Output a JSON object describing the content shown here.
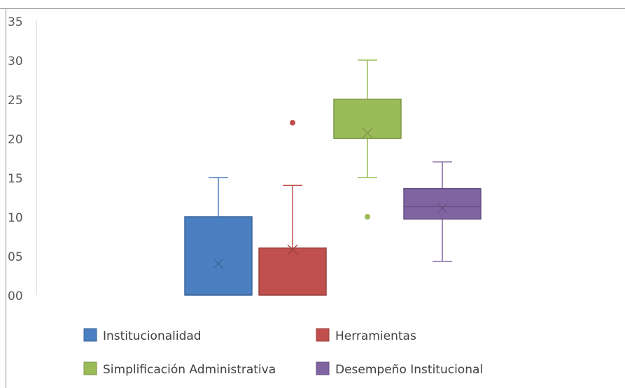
{
  "chart_data": {
    "type": "box",
    "y_tick_labels": [
      "00",
      "05",
      "10",
      "15",
      "20",
      "25",
      "30",
      "35"
    ],
    "y_ticks": [
      0,
      5,
      10,
      15,
      20,
      25,
      30,
      35
    ],
    "ylim": [
      0,
      35
    ],
    "grid": false,
    "legend_position": "bottom",
    "series": [
      {
        "name": "Institucionalidad",
        "color": "#4a7fc1",
        "whisker_low": 0,
        "q1": 0,
        "median": 0,
        "q3": 10,
        "whisker_high": 15,
        "mean": 4,
        "outliers": []
      },
      {
        "name": "Herramientas",
        "color": "#c0504d",
        "whisker_low": 0,
        "q1": 0,
        "median": 0,
        "q3": 6,
        "whisker_high": 14,
        "mean": 5.8,
        "outliers": [
          22
        ]
      },
      {
        "name": "Simplificación Administrativa",
        "color": "#9bbb59",
        "whisker_low": 15,
        "q1": 20,
        "median": 20,
        "q3": 25,
        "whisker_high": 30,
        "mean": 20.7,
        "outliers": [
          10
        ]
      },
      {
        "name": "Desempeño Institucional",
        "color": "#8064a2",
        "whisker_low": 4.3,
        "q1": 9.7,
        "median": 11.3,
        "q3": 13.6,
        "whisker_high": 17,
        "mean": 11.1,
        "outliers": []
      }
    ]
  }
}
